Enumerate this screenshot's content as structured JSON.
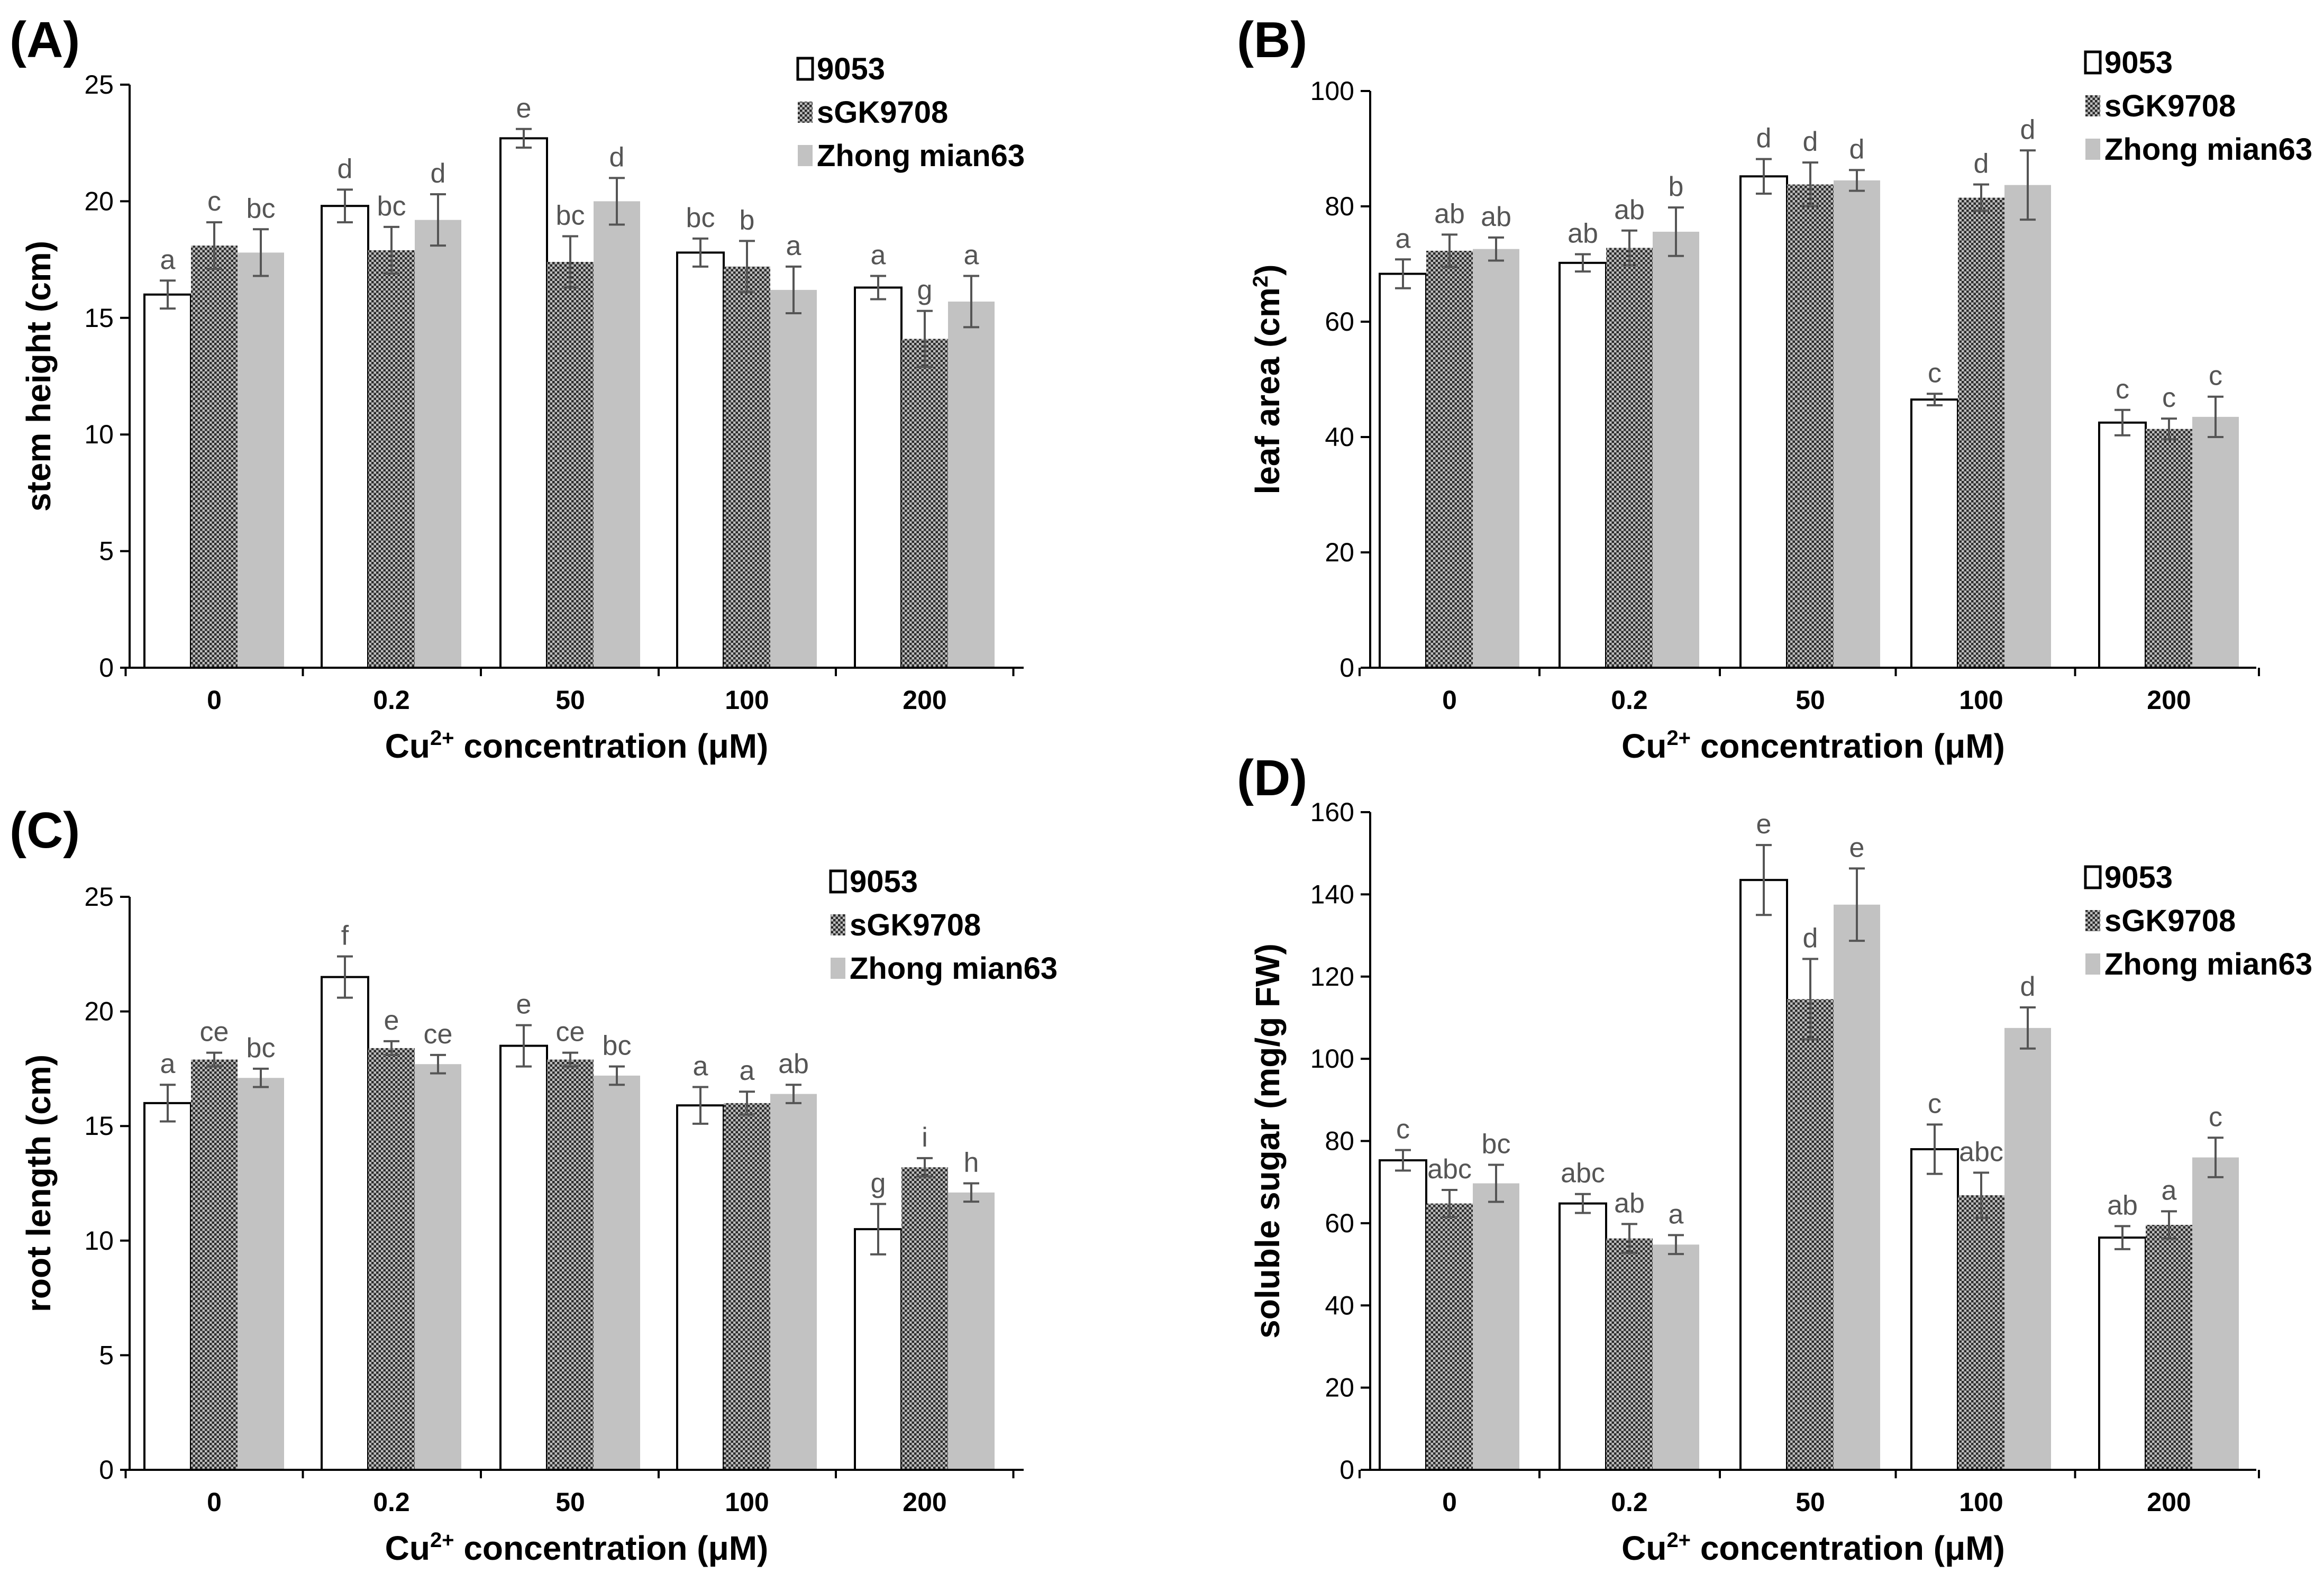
{
  "figure": {
    "series": [
      {
        "name": "9053",
        "style": "white"
      },
      {
        "name": "sGK9708",
        "style": "dotted"
      },
      {
        "name": "Zhong mian63",
        "style": "gray"
      }
    ],
    "colors": {
      "white_fill": "#ffffff",
      "dot_bg": "#bdbdbd",
      "dot_fg": "#2b2b2b",
      "gray_fill": "#c2c2c2",
      "error_bar": "#555555",
      "axis": "#000000",
      "letters": "#555555"
    }
  },
  "chart_data": [
    {
      "panel_label": "(A)",
      "type": "bar",
      "title": "",
      "xlabel_main": "Cu",
      "xlabel_sup": "2+",
      "xlabel_rest": " concentration (μM)",
      "ylabel": "stem height (cm)",
      "ylim": [
        0,
        25
      ],
      "yticks": [
        0,
        5,
        10,
        15,
        20,
        25
      ],
      "categories": [
        "0",
        "0.2",
        "50",
        "100",
        "200"
      ],
      "legend_position": "top-right",
      "series": [
        {
          "name": "9053",
          "values": [
            16.0,
            19.8,
            22.7,
            17.8,
            16.3
          ],
          "errors": [
            0.6,
            0.7,
            0.4,
            0.6,
            0.5
          ],
          "letters": [
            "a",
            "d",
            "e",
            "bc",
            "a"
          ]
        },
        {
          "name": "sGK9708",
          "values": [
            18.1,
            17.9,
            17.4,
            17.2,
            14.1
          ],
          "errors": [
            1.0,
            1.0,
            1.1,
            1.1,
            1.2
          ],
          "letters": [
            "c",
            "bc",
            "bc",
            "b",
            "g"
          ]
        },
        {
          "name": "Zhong mian63",
          "values": [
            17.8,
            19.2,
            20.0,
            16.2,
            15.7
          ],
          "errors": [
            1.0,
            1.1,
            1.0,
            1.0,
            1.1
          ],
          "letters": [
            "bc",
            "d",
            "d",
            "a",
            "a"
          ]
        }
      ]
    },
    {
      "panel_label": "(B)",
      "type": "bar",
      "title": "",
      "xlabel_main": "Cu",
      "xlabel_sup": "2+",
      "xlabel_rest": " concentration (μM)",
      "ylabel": "leaf area (cm",
      "ylabel_sup": "2",
      "ylabel_tail": ")",
      "ylim": [
        0,
        100
      ],
      "yticks": [
        0,
        20,
        40,
        60,
        80,
        100
      ],
      "categories": [
        "0",
        "0.2",
        "50",
        "100",
        "200"
      ],
      "legend_position": "top-right",
      "series": [
        {
          "name": "9053",
          "values": [
            68.3,
            70.2,
            85.2,
            46.5,
            42.5
          ],
          "errors": [
            2.5,
            1.5,
            3.0,
            1.0,
            2.2
          ],
          "letters": [
            "a",
            "ab",
            "d",
            "c",
            "c"
          ]
        },
        {
          "name": "sGK9708",
          "values": [
            72.3,
            72.8,
            83.8,
            81.5,
            41.4
          ],
          "errors": [
            2.8,
            3.0,
            3.8,
            2.3,
            1.8
          ],
          "letters": [
            "ab",
            "ab",
            "d",
            "d",
            "c"
          ]
        },
        {
          "name": "Zhong mian63",
          "values": [
            72.6,
            75.6,
            84.5,
            83.7,
            43.5
          ],
          "errors": [
            2.0,
            4.2,
            1.8,
            6.0,
            3.5
          ],
          "letters": [
            "ab",
            "b",
            "d",
            "d",
            "c"
          ]
        }
      ]
    },
    {
      "panel_label": "(C)",
      "type": "bar",
      "title": "",
      "xlabel_main": "Cu",
      "xlabel_sup": "2+",
      "xlabel_rest": " concentration (μM)",
      "ylabel": "root length (cm)",
      "ylim": [
        0,
        25
      ],
      "yticks": [
        0,
        5,
        10,
        15,
        20,
        25
      ],
      "categories": [
        "0",
        "0.2",
        "50",
        "100",
        "200"
      ],
      "legend_position": "top-right",
      "series": [
        {
          "name": "9053",
          "values": [
            16.0,
            21.5,
            18.5,
            15.9,
            10.5
          ],
          "errors": [
            0.8,
            0.9,
            0.9,
            0.8,
            1.1
          ],
          "letters": [
            "a",
            "f",
            "e",
            "a",
            "g"
          ]
        },
        {
          "name": "sGK9708",
          "values": [
            17.9,
            18.4,
            17.9,
            16.0,
            13.2
          ],
          "errors": [
            0.3,
            0.3,
            0.3,
            0.5,
            0.4
          ],
          "letters": [
            "ce",
            "e",
            "ce",
            "a",
            "i"
          ]
        },
        {
          "name": "Zhong mian63",
          "values": [
            17.1,
            17.7,
            17.2,
            16.4,
            12.1
          ],
          "errors": [
            0.4,
            0.4,
            0.4,
            0.4,
            0.4
          ],
          "letters": [
            "bc",
            "ce",
            "bc",
            "ab",
            "h"
          ]
        }
      ]
    },
    {
      "panel_label": "(D)",
      "type": "bar",
      "title": "",
      "xlabel_main": "Cu",
      "xlabel_sup": "2+",
      "xlabel_rest": " concentration (μM)",
      "ylabel": "soluble sugar (mg/g FW)",
      "ylim": [
        0,
        160
      ],
      "yticks": [
        0,
        20,
        40,
        60,
        80,
        100,
        120,
        140,
        160
      ],
      "categories": [
        "0",
        "0.2",
        "50",
        "100",
        "200"
      ],
      "legend_position": "top-right",
      "series": [
        {
          "name": "9053",
          "values": [
            75.3,
            64.8,
            143.5,
            78.0,
            56.5
          ],
          "errors": [
            2.5,
            2.3,
            8.5,
            6.0,
            2.8
          ],
          "letters": [
            "c",
            "abc",
            "e",
            "c",
            "ab"
          ]
        },
        {
          "name": "sGK9708",
          "values": [
            64.8,
            56.3,
            114.5,
            66.8,
            59.6
          ],
          "errors": [
            3.3,
            3.5,
            9.8,
            5.5,
            3.3
          ],
          "letters": [
            "abc",
            "ab",
            "d",
            "abc",
            "a"
          ]
        },
        {
          "name": "Zhong mian63",
          "values": [
            69.7,
            54.8,
            137.5,
            107.5,
            76.0
          ],
          "errors": [
            4.5,
            2.3,
            8.8,
            5.0,
            4.8
          ],
          "letters": [
            "bc",
            "a",
            "e",
            "d",
            "c"
          ]
        }
      ]
    }
  ]
}
